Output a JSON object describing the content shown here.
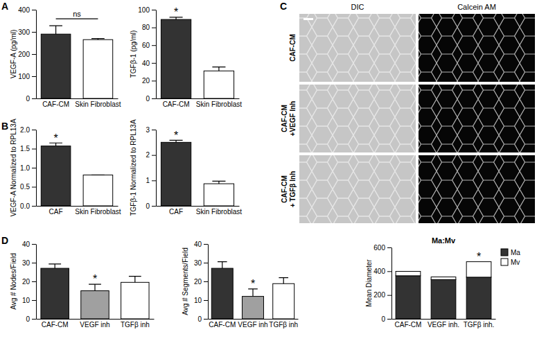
{
  "panel_labels": [
    "A",
    "B",
    "C",
    "D"
  ],
  "image_panel": {
    "columns": [
      "DIC",
      "Calcein AM"
    ],
    "rows": [
      [
        "CAF-CM"
      ],
      [
        "CAF-CM",
        "+VEGF Inh"
      ],
      [
        "CAF-CM",
        "+ TGFβ Inh"
      ]
    ]
  },
  "chart_data": [
    {
      "type": "bar",
      "y_label": "VEGF-A (pg/ml)",
      "categories": [
        "CAF-CM",
        "Skin Fibroblast"
      ],
      "values": [
        290,
        265
      ],
      "errors": [
        38,
        5
      ],
      "colors": [
        "#333333",
        "#ffffff"
      ],
      "ylim": [
        0,
        400
      ],
      "yticks": [
        0,
        100,
        200,
        300,
        400
      ],
      "annotations": [
        {
          "text": "ns",
          "categories": [
            "CAF-CM",
            "Skin Fibroblast"
          ]
        }
      ]
    },
    {
      "type": "bar",
      "y_label": "TGFβ-1 (pg/ml)",
      "categories": [
        "CAF-CM",
        "Skin Fibroblast"
      ],
      "values": [
        89,
        31
      ],
      "errors": [
        2.5,
        4.5
      ],
      "colors": [
        "#333333",
        "#ffffff"
      ],
      "ylim": [
        0,
        100
      ],
      "yticks": [
        0,
        20,
        40,
        60,
        80,
        100
      ],
      "annotations": [
        {
          "text": "*",
          "categories": [
            "CAF-CM"
          ]
        }
      ]
    },
    {
      "type": "bar",
      "y_label": "VEGF-A Normalized to RPL13A",
      "categories": [
        "CAF",
        "Skin Fibroblast"
      ],
      "values": [
        1.57,
        0.81
      ],
      "errors": [
        0.08,
        0
      ],
      "colors": [
        "#333333",
        "#ffffff"
      ],
      "ylim": [
        0,
        2
      ],
      "yticks": [
        {
          "value": 0,
          "label": "0.0"
        },
        0.5,
        {
          "value": 1,
          "label": "1.0"
        },
        1.5,
        {
          "value": 2,
          "label": "2.0"
        }
      ],
      "annotations": [
        {
          "text": "*",
          "categories": [
            "CAF"
          ]
        }
      ]
    },
    {
      "type": "bar",
      "y_label": "TGFβ-1 Normalized to RPL13A",
      "categories": [
        "CAF",
        "Skin Fibroblast"
      ],
      "values": [
        2.5,
        0.87
      ],
      "errors": [
        0.08,
        0.1
      ],
      "colors": [
        "#333333",
        "#ffffff"
      ],
      "ylim": [
        0,
        3
      ],
      "yticks": [
        0,
        1,
        2,
        3
      ],
      "annotations": [
        {
          "text": "*",
          "categories": [
            "CAF"
          ]
        }
      ]
    },
    {
      "type": "bar",
      "y_label": "Avg # Nodes/Field",
      "categories": [
        "CAF-CM",
        "VEGF inh",
        "TGFβ inh"
      ],
      "values": [
        27,
        15,
        19.5
      ],
      "errors": [
        2.3,
        3.5,
        3.2
      ],
      "colors": [
        "#333333",
        "#a0a0a0",
        "#ffffff"
      ],
      "ylim": [
        0,
        40
      ],
      "yticks": [
        0,
        10,
        20,
        30,
        40
      ],
      "annotations": [
        {
          "text": "*",
          "categories": [
            "VEGF inh"
          ]
        }
      ]
    },
    {
      "type": "bar",
      "y_label": "Avg # Segments/Field",
      "categories": [
        "CAF-CM",
        "VEGF inh",
        "TGFβ inh"
      ],
      "values": [
        27,
        12,
        18.8
      ],
      "errors": [
        3.5,
        4,
        3.2
      ],
      "colors": [
        "#333333",
        "#a0a0a0",
        "#ffffff"
      ],
      "ylim": [
        0,
        40
      ],
      "yticks": [
        0,
        10,
        20,
        30,
        40
      ],
      "annotations": [
        {
          "text": "*",
          "categories": [
            "VEGF inh"
          ]
        }
      ]
    },
    {
      "type": "bar",
      "stacked": true,
      "title": "Ma:Mv",
      "y_label": "Mean Diameter",
      "categories": [
        "CAF-CM",
        "VEGF inh.",
        "TGFβ inh."
      ],
      "series": [
        {
          "name": "Ma",
          "color": "#333333",
          "values": [
            362,
            330,
            350
          ]
        },
        {
          "name": "Mv",
          "color": "#ffffff",
          "values": [
            37,
            22,
            130
          ]
        }
      ],
      "ylim": [
        0,
        600
      ],
      "yticks": [
        0,
        200,
        400,
        600
      ],
      "legend": "top-right",
      "annotations": [
        {
          "text": "*",
          "categories": [
            "TGFβ inh."
          ]
        }
      ]
    }
  ]
}
